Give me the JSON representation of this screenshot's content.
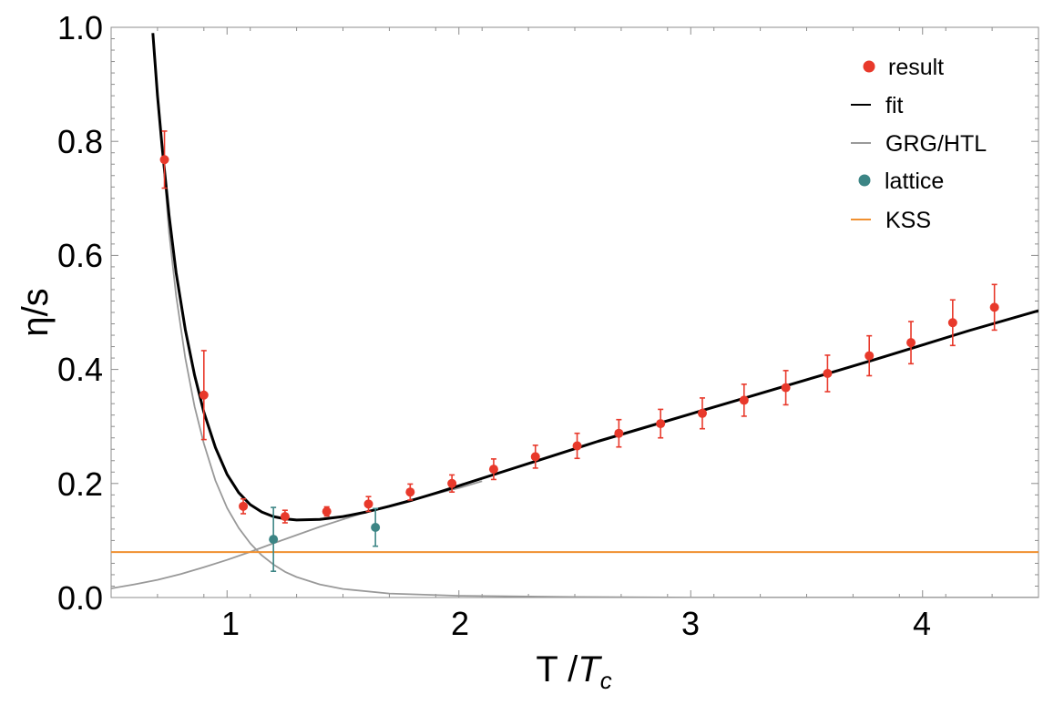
{
  "chart_data": {
    "type": "scatter",
    "title": "",
    "xlabel": {
      "main": "T /",
      "var": "T",
      "sub": "c"
    },
    "ylabel": "η/s",
    "xlim": [
      0.5,
      4.5
    ],
    "ylim": [
      0.0,
      1.0
    ],
    "x_ticks": [
      "1",
      "2",
      "3",
      "4"
    ],
    "y_ticks": [
      "0.0",
      "0.2",
      "0.4",
      "0.6",
      "0.8",
      "1.0"
    ],
    "x_tick_values": [
      1,
      2,
      3,
      4
    ],
    "y_tick_values": [
      0.0,
      0.2,
      0.4,
      0.6,
      0.8,
      1.0
    ],
    "grid": false,
    "legend_position": "top-right",
    "legend": [
      {
        "label": "result",
        "marker": "dot",
        "color": "#e8392b"
      },
      {
        "label": "fit",
        "marker": "line",
        "color": "#000000"
      },
      {
        "label": "GRG/HTL",
        "marker": "line",
        "color": "#999999"
      },
      {
        "label": "lattice",
        "marker": "dot",
        "color": "#3c8585"
      },
      {
        "label": "KSS",
        "marker": "line",
        "color": "#f09030"
      }
    ],
    "series": [
      {
        "name": "result",
        "kind": "points",
        "color": "#e8392b",
        "points": [
          {
            "x": 0.73,
            "y": 0.768,
            "lo": 0.718,
            "hi": 0.818
          },
          {
            "x": 0.9,
            "y": 0.355,
            "lo": 0.277,
            "hi": 0.433
          },
          {
            "x": 1.07,
            "y": 0.16,
            "lo": 0.147,
            "hi": 0.173
          },
          {
            "x": 1.25,
            "y": 0.142,
            "lo": 0.131,
            "hi": 0.153
          },
          {
            "x": 1.43,
            "y": 0.151,
            "lo": 0.143,
            "hi": 0.159
          },
          {
            "x": 1.61,
            "y": 0.164,
            "lo": 0.151,
            "hi": 0.177
          },
          {
            "x": 1.79,
            "y": 0.185,
            "lo": 0.171,
            "hi": 0.199
          },
          {
            "x": 1.97,
            "y": 0.2,
            "lo": 0.185,
            "hi": 0.215
          },
          {
            "x": 2.15,
            "y": 0.225,
            "lo": 0.207,
            "hi": 0.243
          },
          {
            "x": 2.33,
            "y": 0.247,
            "lo": 0.227,
            "hi": 0.267
          },
          {
            "x": 2.51,
            "y": 0.266,
            "lo": 0.244,
            "hi": 0.288
          },
          {
            "x": 2.69,
            "y": 0.288,
            "lo": 0.264,
            "hi": 0.312
          },
          {
            "x": 2.87,
            "y": 0.305,
            "lo": 0.28,
            "hi": 0.33
          },
          {
            "x": 3.05,
            "y": 0.323,
            "lo": 0.296,
            "hi": 0.35
          },
          {
            "x": 3.23,
            "y": 0.346,
            "lo": 0.318,
            "hi": 0.374
          },
          {
            "x": 3.41,
            "y": 0.368,
            "lo": 0.338,
            "hi": 0.398
          },
          {
            "x": 3.59,
            "y": 0.393,
            "lo": 0.361,
            "hi": 0.425
          },
          {
            "x": 3.77,
            "y": 0.424,
            "lo": 0.389,
            "hi": 0.459
          },
          {
            "x": 3.95,
            "y": 0.447,
            "lo": 0.41,
            "hi": 0.484
          },
          {
            "x": 4.13,
            "y": 0.482,
            "lo": 0.442,
            "hi": 0.522
          },
          {
            "x": 4.31,
            "y": 0.509,
            "lo": 0.469,
            "hi": 0.549
          }
        ]
      },
      {
        "name": "lattice",
        "kind": "points",
        "color": "#3c8585",
        "points": [
          {
            "x": 1.2,
            "y": 0.102,
            "lo": 0.046,
            "hi": 0.158
          },
          {
            "x": 1.64,
            "y": 0.123,
            "lo": 0.09,
            "hi": 0.156
          }
        ]
      },
      {
        "name": "fit",
        "kind": "line",
        "color": "#000000",
        "points": [
          {
            "x": 0.68,
            "y": 0.99
          },
          {
            "x": 0.7,
            "y": 0.88
          },
          {
            "x": 0.72,
            "y": 0.79
          },
          {
            "x": 0.75,
            "y": 0.67
          },
          {
            "x": 0.78,
            "y": 0.57
          },
          {
            "x": 0.82,
            "y": 0.47
          },
          {
            "x": 0.86,
            "y": 0.39
          },
          {
            "x": 0.9,
            "y": 0.325
          },
          {
            "x": 0.95,
            "y": 0.263
          },
          {
            "x": 1.0,
            "y": 0.216
          },
          {
            "x": 1.05,
            "y": 0.184
          },
          {
            "x": 1.1,
            "y": 0.163
          },
          {
            "x": 1.15,
            "y": 0.15
          },
          {
            "x": 1.2,
            "y": 0.142
          },
          {
            "x": 1.25,
            "y": 0.138
          },
          {
            "x": 1.3,
            "y": 0.136
          },
          {
            "x": 1.4,
            "y": 0.137
          },
          {
            "x": 1.5,
            "y": 0.142
          },
          {
            "x": 1.6,
            "y": 0.15
          },
          {
            "x": 1.7,
            "y": 0.16
          },
          {
            "x": 1.8,
            "y": 0.171
          },
          {
            "x": 1.9,
            "y": 0.183
          },
          {
            "x": 2.0,
            "y": 0.196
          },
          {
            "x": 2.2,
            "y": 0.222
          },
          {
            "x": 2.4,
            "y": 0.248
          },
          {
            "x": 2.6,
            "y": 0.274
          },
          {
            "x": 2.8,
            "y": 0.298
          },
          {
            "x": 3.0,
            "y": 0.322
          },
          {
            "x": 3.2,
            "y": 0.346
          },
          {
            "x": 3.4,
            "y": 0.37
          },
          {
            "x": 3.6,
            "y": 0.394
          },
          {
            "x": 3.8,
            "y": 0.418
          },
          {
            "x": 4.0,
            "y": 0.443
          },
          {
            "x": 4.2,
            "y": 0.468
          },
          {
            "x": 4.5,
            "y": 0.503
          }
        ]
      },
      {
        "name": "GRG/HTL",
        "kind": "line",
        "color": "#999999",
        "points": [
          {
            "x": 0.72,
            "y": 0.79
          },
          {
            "x": 0.75,
            "y": 0.64
          },
          {
            "x": 0.78,
            "y": 0.53
          },
          {
            "x": 0.82,
            "y": 0.42
          },
          {
            "x": 0.86,
            "y": 0.335
          },
          {
            "x": 0.9,
            "y": 0.27
          },
          {
            "x": 0.95,
            "y": 0.205
          },
          {
            "x": 1.0,
            "y": 0.157
          },
          {
            "x": 1.05,
            "y": 0.122
          },
          {
            "x": 1.1,
            "y": 0.095
          },
          {
            "x": 1.15,
            "y": 0.074
          },
          {
            "x": 1.2,
            "y": 0.058
          },
          {
            "x": 1.25,
            "y": 0.045
          },
          {
            "x": 1.3,
            "y": 0.036
          },
          {
            "x": 1.4,
            "y": 0.023
          },
          {
            "x": 1.5,
            "y": 0.015
          },
          {
            "x": 1.7,
            "y": 0.007
          },
          {
            "x": 2.0,
            "y": 0.003
          },
          {
            "x": 2.5,
            "y": 0.001
          },
          {
            "x": 3.0,
            "y": 0.0
          },
          {
            "x": 4.5,
            "y": 0.0
          }
        ]
      },
      {
        "name": "GRG/HTL",
        "kind": "line",
        "color": "#999999",
        "points": [
          {
            "x": 0.5,
            "y": 0.016
          },
          {
            "x": 0.6,
            "y": 0.023
          },
          {
            "x": 0.7,
            "y": 0.031
          },
          {
            "x": 0.8,
            "y": 0.041
          },
          {
            "x": 0.9,
            "y": 0.053
          },
          {
            "x": 1.0,
            "y": 0.066
          },
          {
            "x": 1.1,
            "y": 0.08
          },
          {
            "x": 1.2,
            "y": 0.095
          },
          {
            "x": 1.4,
            "y": 0.124
          },
          {
            "x": 1.6,
            "y": 0.15
          },
          {
            "x": 1.8,
            "y": 0.172
          },
          {
            "x": 2.0,
            "y": 0.192
          },
          {
            "x": 2.1,
            "y": 0.204
          }
        ]
      },
      {
        "name": "KSS",
        "kind": "hline",
        "color": "#f09030",
        "y": 0.0796
      }
    ]
  }
}
